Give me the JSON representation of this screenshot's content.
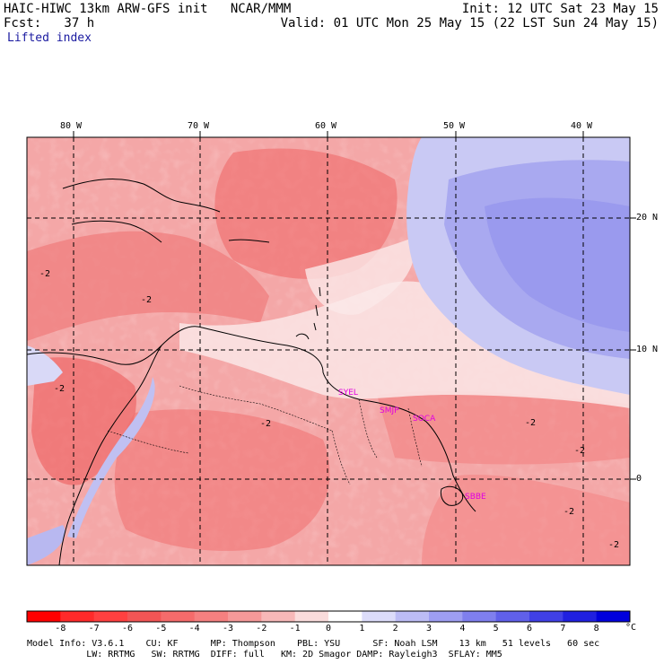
{
  "header": {
    "model_title": "HAIC-HIWC 13km ARW-GFS init   NCAR/MMM",
    "fcst_label": "Fcst:   37 h",
    "init_label": "Init: 12 UTC Sat 23 May 15",
    "valid_label": "Valid: 01 UTC Mon 25 May 15 (22 LST Sun 24 May 15)",
    "field_label": "Lifted index"
  },
  "map": {
    "lon_labels": [
      "80 W",
      "70 W",
      "60 W",
      "50 W",
      "40 W"
    ],
    "lat_labels": [
      "20 N",
      "10 N",
      "0"
    ],
    "stations": [
      "SYEL",
      "SMJP",
      "SOCA",
      "SBBE"
    ],
    "contour_labels": [
      "-2",
      "-2",
      "-2",
      "-2",
      "-2",
      "-2",
      "-2",
      "-2"
    ]
  },
  "colorbar": {
    "ticks": [
      "-8",
      "-7",
      "-6",
      "-5",
      "-4",
      "-3",
      "-2",
      "-1",
      "0",
      "1",
      "2",
      "3",
      "4",
      "5",
      "6",
      "7",
      "8"
    ],
    "unit": "°C",
    "colors": [
      "#ff0000",
      "#ff2a2a",
      "#ff4040",
      "#f25555",
      "#f56b6b",
      "#f58080",
      "#f59999",
      "#f7b8b8",
      "#fadcdc",
      "#ffffff",
      "#dcdcfa",
      "#bcbcf5",
      "#9e9ef2",
      "#7f7fee",
      "#6060ea",
      "#4040e6",
      "#2020e0",
      "#0000dd"
    ]
  },
  "footer": {
    "line1": "Model Info: V3.6.1    CU: KF      MP: Thompson    PBL: YSU      SF: Noah LSM    13 km   51 levels   60 sec",
    "line2": "           LW: RRTMG   SW: RRTMG  DIFF: full   KM: 2D Smagor DAMP: Rayleigh3  SFLAY: MM5"
  }
}
